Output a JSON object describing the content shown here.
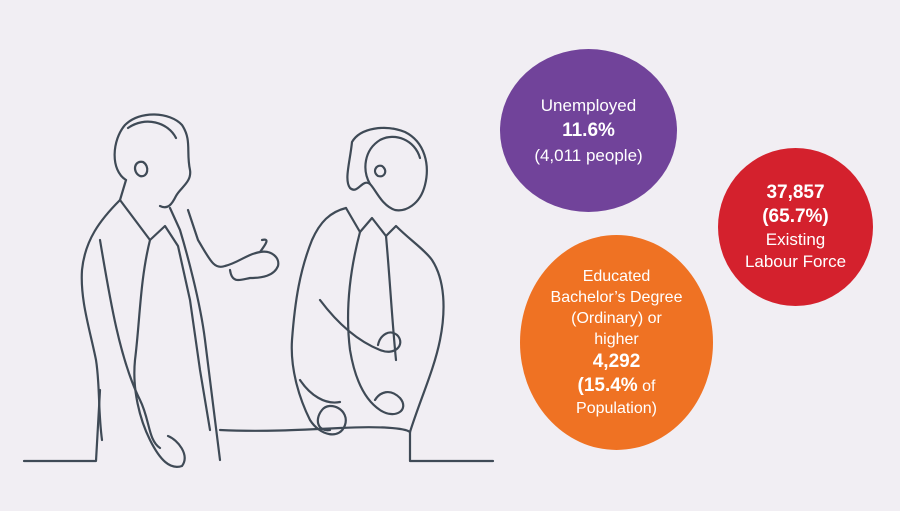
{
  "unemployed": {
    "label": "Unemployed",
    "percent": "11.6%",
    "people": "(4,011 people)",
    "color": "#71439a"
  },
  "labour_force": {
    "count": "37,857",
    "percent": "(65.7%)",
    "label_line1": "Existing",
    "label_line2": "Labour Force",
    "color": "#d4212d"
  },
  "educated": {
    "line1": "Educated",
    "line2": "Bachelor’s Degree",
    "line3": "(Ordinary) or",
    "line4": "higher",
    "count": "4,292",
    "percent_bold": "(15.4%",
    "percent_rest": " of",
    "line_last": "Population)",
    "color": "#ef7223"
  },
  "illustration": {
    "icon": "two-people-talking-line-art-icon",
    "stroke_color": "#3f4a56"
  }
}
